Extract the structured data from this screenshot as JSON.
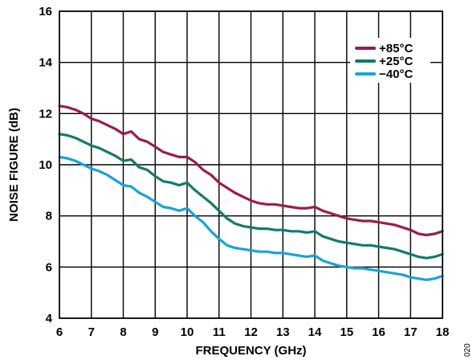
{
  "chart_data": {
    "type": "line",
    "title": "",
    "xlabel": "FREQUENCY (GHz)",
    "ylabel": "NOISE FIGURE (dB)",
    "xlim": [
      6,
      18
    ],
    "ylim": [
      4,
      16
    ],
    "xticks": [
      6,
      7,
      8,
      9,
      10,
      11,
      12,
      13,
      14,
      15,
      16,
      17,
      18
    ],
    "yticks": [
      4,
      6,
      8,
      10,
      12,
      14,
      16
    ],
    "grid": true,
    "legend_position": "top-right",
    "figure_code": "020",
    "series": [
      {
        "name": "+85°C",
        "color": "#9a1d4a",
        "x": [
          6.0,
          6.25,
          6.5,
          6.75,
          7.0,
          7.25,
          7.5,
          7.75,
          8.0,
          8.25,
          8.5,
          8.75,
          9.0,
          9.25,
          9.5,
          9.75,
          10.0,
          10.25,
          10.5,
          10.75,
          11.0,
          11.25,
          11.5,
          11.75,
          12.0,
          12.25,
          12.5,
          12.75,
          13.0,
          13.25,
          13.5,
          13.75,
          14.0,
          14.25,
          14.5,
          14.75,
          15.0,
          15.25,
          15.5,
          15.75,
          16.0,
          16.25,
          16.5,
          16.75,
          17.0,
          17.25,
          17.5,
          17.75,
          18.0
        ],
        "y": [
          12.3,
          12.25,
          12.15,
          12.0,
          11.8,
          11.7,
          11.55,
          11.4,
          11.2,
          11.3,
          11.0,
          10.9,
          10.7,
          10.5,
          10.4,
          10.3,
          10.3,
          10.1,
          9.8,
          9.6,
          9.3,
          9.1,
          8.9,
          8.75,
          8.6,
          8.5,
          8.45,
          8.45,
          8.4,
          8.35,
          8.3,
          8.3,
          8.35,
          8.2,
          8.1,
          8.0,
          7.9,
          7.85,
          7.8,
          7.8,
          7.75,
          7.7,
          7.65,
          7.55,
          7.45,
          7.3,
          7.25,
          7.3,
          7.4
        ]
      },
      {
        "name": "+25°C",
        "color": "#127a6c",
        "x": [
          6.0,
          6.25,
          6.5,
          6.75,
          7.0,
          7.25,
          7.5,
          7.75,
          8.0,
          8.25,
          8.5,
          8.75,
          9.0,
          9.25,
          9.5,
          9.75,
          10.0,
          10.25,
          10.5,
          10.75,
          11.0,
          11.25,
          11.5,
          11.75,
          12.0,
          12.25,
          12.5,
          12.75,
          13.0,
          13.25,
          13.5,
          13.75,
          14.0,
          14.25,
          14.5,
          14.75,
          15.0,
          15.25,
          15.5,
          15.75,
          16.0,
          16.25,
          16.5,
          16.75,
          17.0,
          17.25,
          17.5,
          17.75,
          18.0
        ],
        "y": [
          11.2,
          11.15,
          11.05,
          10.9,
          10.75,
          10.65,
          10.5,
          10.35,
          10.15,
          10.2,
          9.9,
          9.8,
          9.55,
          9.35,
          9.3,
          9.2,
          9.3,
          9.0,
          8.75,
          8.5,
          8.2,
          7.9,
          7.7,
          7.6,
          7.55,
          7.5,
          7.5,
          7.45,
          7.45,
          7.4,
          7.4,
          7.35,
          7.4,
          7.2,
          7.1,
          7.0,
          6.95,
          6.9,
          6.85,
          6.85,
          6.8,
          6.75,
          6.7,
          6.6,
          6.5,
          6.4,
          6.35,
          6.4,
          6.5
        ]
      },
      {
        "name": "−40°C",
        "color": "#1aa3d6",
        "x": [
          6.0,
          6.25,
          6.5,
          6.75,
          7.0,
          7.25,
          7.5,
          7.75,
          8.0,
          8.25,
          8.5,
          8.75,
          9.0,
          9.25,
          9.5,
          9.75,
          10.0,
          10.25,
          10.5,
          10.75,
          11.0,
          11.25,
          11.5,
          11.75,
          12.0,
          12.25,
          12.5,
          12.75,
          13.0,
          13.25,
          13.5,
          13.75,
          14.0,
          14.25,
          14.5,
          14.75,
          15.0,
          15.25,
          15.5,
          15.75,
          16.0,
          16.25,
          16.5,
          16.75,
          17.0,
          17.25,
          17.5,
          17.75,
          18.0
        ],
        "y": [
          10.3,
          10.25,
          10.15,
          10.0,
          9.85,
          9.75,
          9.6,
          9.4,
          9.2,
          9.15,
          8.9,
          8.75,
          8.55,
          8.35,
          8.3,
          8.2,
          8.3,
          8.0,
          7.75,
          7.4,
          7.1,
          6.85,
          6.75,
          6.7,
          6.65,
          6.6,
          6.6,
          6.55,
          6.55,
          6.5,
          6.45,
          6.4,
          6.45,
          6.25,
          6.15,
          6.05,
          6.0,
          5.95,
          5.95,
          5.9,
          5.85,
          5.8,
          5.75,
          5.7,
          5.6,
          5.55,
          5.5,
          5.55,
          5.65
        ]
      }
    ]
  }
}
